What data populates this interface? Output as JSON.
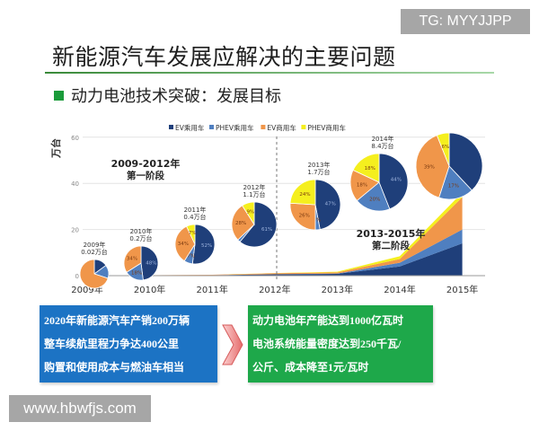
{
  "watermarks": {
    "top": "TG: MYYJJPP",
    "bottom": "www.hbwfjs.com"
  },
  "title": "新能源汽车发展应解决的主要问题",
  "subtitle": "动力电池技术突破：发展目标",
  "chart_data": {
    "type": "area",
    "ylabel": "万台",
    "ylim": [
      0,
      60
    ],
    "yticks": [
      "0",
      "20",
      "40",
      "60"
    ],
    "categories": [
      "2009年",
      "2010年",
      "2011年",
      "2012年",
      "2013年",
      "2014年",
      "2015年"
    ],
    "legend_placement": "top",
    "series": [
      {
        "name": "EV乘用车",
        "color": "#1f3f7a",
        "values": [
          0.01,
          0.1,
          0.2,
          0.6,
          0.8,
          4,
          14
        ]
      },
      {
        "name": "PHEV乘用车",
        "color": "#4f7fc0",
        "values": [
          0.005,
          0.03,
          0.03,
          0.05,
          0.1,
          1.6,
          6
        ]
      },
      {
        "name": "EV商用车",
        "color": "#f0964a",
        "values": [
          0.005,
          0.07,
          0.15,
          0.4,
          0.5,
          1.6,
          14
        ]
      },
      {
        "name": "PHEV商用车",
        "color": "#f5ef1e",
        "values": [
          0,
          0,
          0.02,
          0.05,
          0.3,
          1.2,
          2
        ]
      }
    ],
    "pies": [
      {
        "label": [
          "2009年",
          "0.02万台"
        ],
        "values": [
          15,
          15,
          70,
          0
        ],
        "texts": [
          "",
          "",
          "",
          ""
        ]
      },
      {
        "label": [
          "2010年",
          "0.2万台"
        ],
        "values": [
          48,
          18,
          34,
          0
        ],
        "texts": [
          "48%",
          "18%",
          "34%",
          ""
        ]
      },
      {
        "label": [
          "2011年",
          "0.4万台"
        ],
        "values": [
          52,
          7,
          34,
          7
        ],
        "texts": [
          "52%",
          "7%",
          "34%",
          "7%"
        ]
      },
      {
        "label": [
          "2012年",
          "1.1万台"
        ],
        "values": [
          61,
          2,
          28,
          9
        ],
        "texts": [
          "61%",
          "",
          "28%",
          "9%"
        ]
      },
      {
        "label": [
          "2013年",
          "1.7万台"
        ],
        "values": [
          47,
          3,
          26,
          24
        ],
        "texts": [
          "47%",
          "3%",
          "26%",
          "24%"
        ]
      },
      {
        "label": [
          "2014年",
          "8.4万台"
        ],
        "values": [
          44,
          20,
          18,
          18
        ],
        "texts": [
          "44%",
          "20%",
          "18%",
          "18%"
        ]
      },
      {
        "label": [
          "",
          ""
        ],
        "values": [
          38,
          17,
          39,
          6
        ],
        "texts": [
          "",
          "17%",
          "39%",
          "6%"
        ]
      }
    ],
    "phases": [
      {
        "lines": [
          "2009-2012年",
          "第一阶段"
        ]
      },
      {
        "lines": [
          "2013-2015年",
          "第二阶段"
        ]
      }
    ]
  },
  "goals_left": [
    "2020年新能源汽车产销200万辆",
    "整车续航里程力争达400公里",
    "购置和使用成本与燃油车相当"
  ],
  "goals_right": [
    "动力电池年产能达到1000亿瓦时",
    "电池系统能量密度达到250千瓦/",
    "公斤、成本降至1元/瓦时"
  ]
}
